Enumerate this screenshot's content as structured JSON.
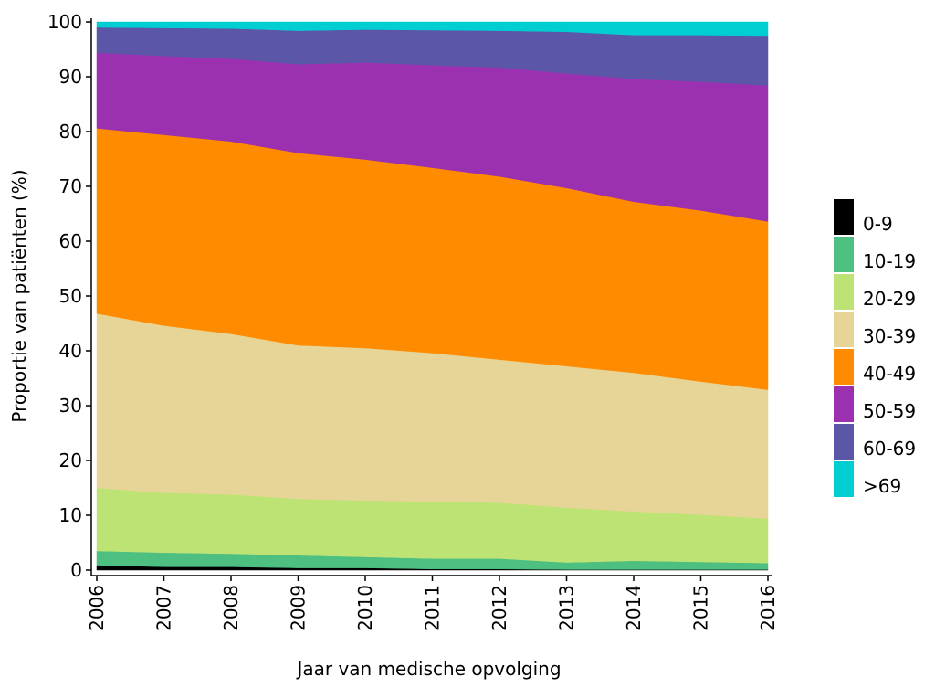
{
  "chart_data": {
    "type": "stacked_area",
    "x_label": "Jaar van medische opvolging",
    "y_label": "Proportie van patiënten (%)",
    "x": [
      2006,
      2007,
      2008,
      2009,
      2010,
      2011,
      2012,
      2013,
      2014,
      2015,
      2016
    ],
    "xlim": [
      2006,
      2016
    ],
    "xticks": [
      2006,
      2007,
      2008,
      2009,
      2010,
      2011,
      2012,
      2013,
      2014,
      2015,
      2016
    ],
    "ylim": [
      0,
      100
    ],
    "yticks": [
      0,
      10,
      20,
      30,
      40,
      50,
      60,
      70,
      80,
      90,
      100
    ],
    "legend": "right",
    "series": [
      {
        "name": "0-9",
        "color": "#000000",
        "values": [
          0.9,
          0.6,
          0.6,
          0.4,
          0.4,
          0.2,
          0.2,
          0.1,
          0.1,
          0.1,
          0.1
        ]
      },
      {
        "name": "10-19",
        "color": "#4dbf80",
        "values": [
          2.6,
          2.6,
          2.4,
          2.3,
          2.0,
          1.9,
          1.9,
          1.3,
          1.6,
          1.4,
          1.2
        ]
      },
      {
        "name": "20-29",
        "color": "#bde374",
        "values": [
          11.5,
          10.9,
          10.8,
          10.3,
          10.3,
          10.4,
          10.2,
          10.0,
          9.0,
          8.6,
          8.1
        ]
      },
      {
        "name": "30-39",
        "color": "#e6d597",
        "values": [
          31.8,
          30.5,
          29.3,
          28.0,
          27.8,
          27.1,
          26.1,
          25.8,
          25.3,
          24.3,
          23.5
        ]
      },
      {
        "name": "40-49",
        "color": "#ff8c00",
        "values": [
          33.8,
          34.8,
          35.1,
          35.1,
          34.4,
          33.8,
          33.4,
          32.5,
          31.2,
          31.2,
          30.7
        ]
      },
      {
        "name": "50-59",
        "color": "#9b30b0",
        "values": [
          13.8,
          14.4,
          15.1,
          16.2,
          17.7,
          18.7,
          19.9,
          20.9,
          22.4,
          23.5,
          24.8
        ]
      },
      {
        "name": "60-69",
        "color": "#5b56a8",
        "values": [
          4.6,
          5.1,
          5.5,
          6.1,
          6.0,
          6.4,
          6.7,
          7.6,
          8.0,
          8.5,
          9.1
        ]
      },
      {
        "name": ">69",
        "color": "#00ced1",
        "values": [
          1.0,
          1.1,
          1.2,
          1.6,
          1.4,
          1.5,
          1.6,
          1.8,
          2.4,
          2.4,
          2.5
        ]
      }
    ]
  }
}
